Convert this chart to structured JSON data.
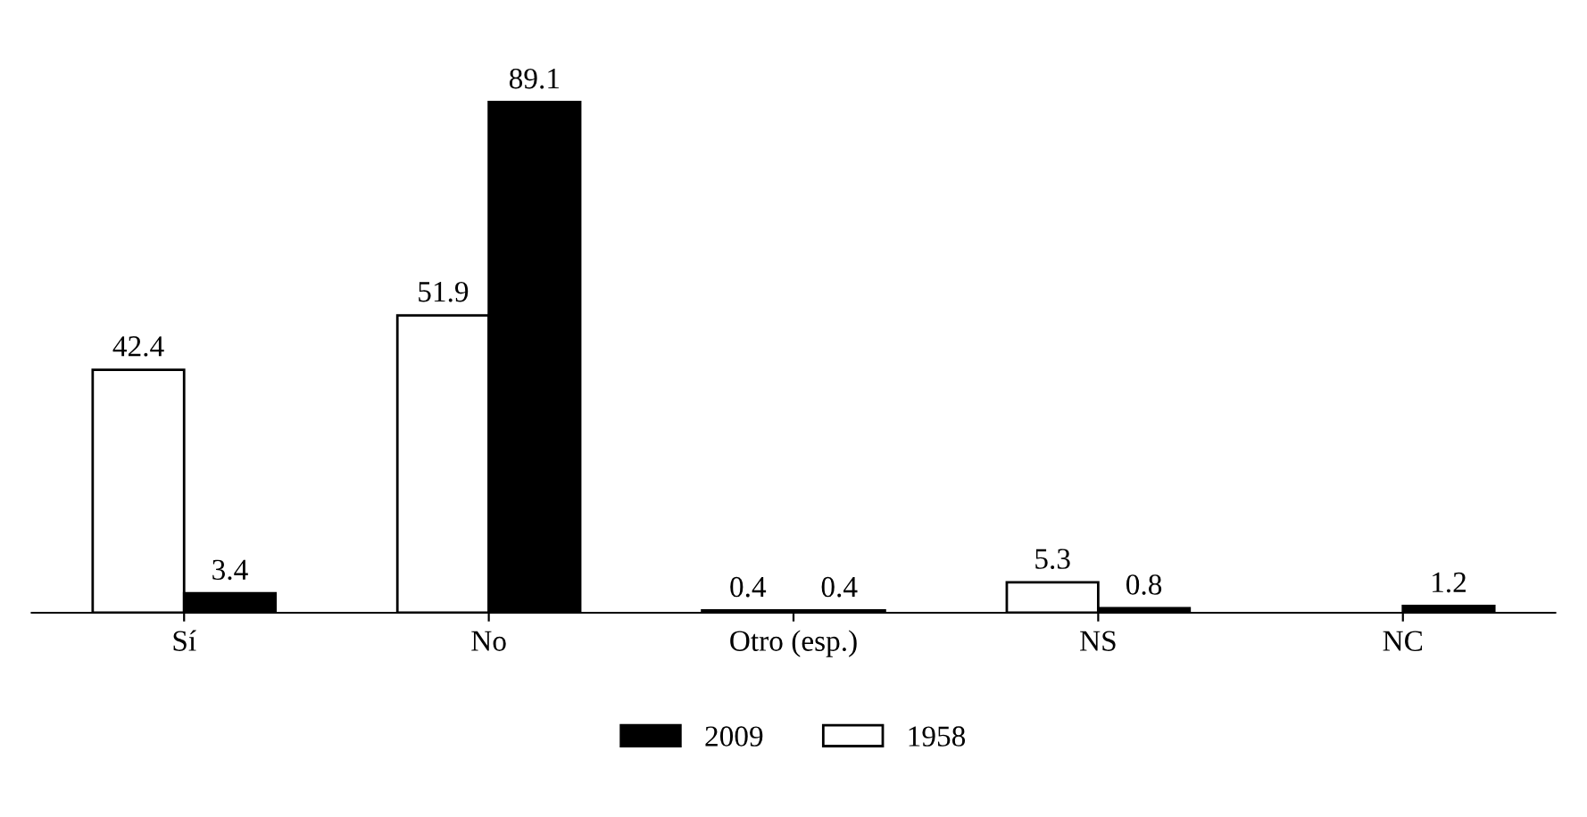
{
  "chart_data": {
    "type": "bar",
    "categories": [
      "Sí",
      "No",
      "Otro (esp.)",
      "NS",
      "NC"
    ],
    "series": [
      {
        "name": "1958",
        "color": "#ffffff",
        "values": [
          42.4,
          51.9,
          0.4,
          5.3,
          null
        ]
      },
      {
        "name": "2009",
        "color": "#000000",
        "values": [
          3.4,
          89.1,
          0.4,
          0.8,
          1.2
        ]
      }
    ],
    "data_labels": true,
    "legend": "bottom",
    "grid": false,
    "tick_labels": "x"
  }
}
